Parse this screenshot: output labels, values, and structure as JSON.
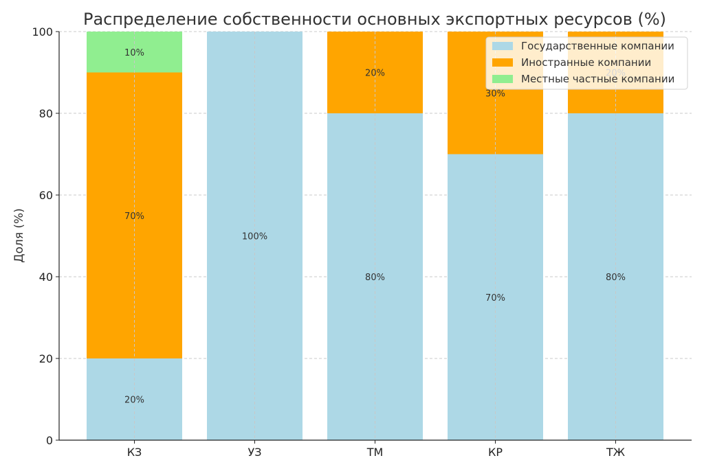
{
  "chart_data": {
    "type": "bar",
    "stacked": true,
    "title": "Распределение собственности основных экспортных ресурсов (%)",
    "xlabel": "",
    "ylabel": "Доля (%)",
    "ylim": [
      0,
      100
    ],
    "yticks": [
      0,
      20,
      40,
      60,
      80,
      100
    ],
    "grid": true,
    "legend_position": "top-right",
    "categories": [
      "КЗ",
      "УЗ",
      "ТМ",
      "КР",
      "ТЖ"
    ],
    "series": [
      {
        "name": "Государственные компании",
        "color": "#add8e6",
        "values": [
          20,
          100,
          80,
          70,
          80
        ],
        "labels": [
          "20%",
          "100%",
          "80%",
          "70%",
          "80%"
        ]
      },
      {
        "name": "Иностранные компании",
        "color": "#ffa500",
        "values": [
          70,
          0,
          20,
          30,
          20
        ],
        "labels": [
          "70%",
          "",
          "20%",
          "30%",
          "20%"
        ]
      },
      {
        "name": "Местные частные компании",
        "color": "#90ee90",
        "values": [
          10,
          0,
          0,
          0,
          0
        ],
        "labels": [
          "10%",
          "",
          "",
          "",
          ""
        ]
      }
    ]
  }
}
